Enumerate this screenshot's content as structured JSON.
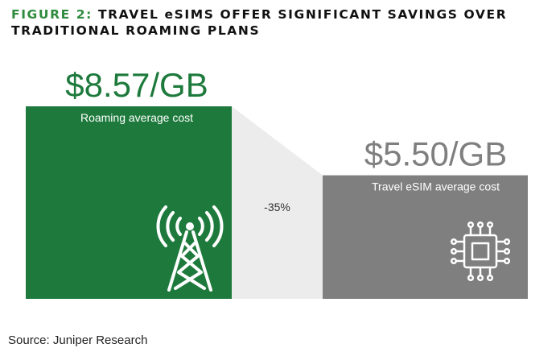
{
  "title": {
    "prefix": "FIGURE 2:",
    "text": "TRAVEL eSIMS OFFER SIGNIFICANT SAVINGS OVER TRADITIONAL ROAMING PLANS"
  },
  "chart_data": {
    "type": "bar",
    "categories": [
      "Roaming average cost",
      "Travel eSIM average cost"
    ],
    "values": [
      8.57,
      5.5
    ],
    "value_labels": [
      "$8.57/GB",
      "$5.50/GB"
    ],
    "unit": "$/GB",
    "ylim": [
      0,
      8.57
    ],
    "difference_label": "-35%",
    "colors": [
      "#1e7a3c",
      "#7f7f7f"
    ],
    "connector_color": "#ececec",
    "value_label_colors": [
      "#1e7a3c",
      "#7f7f7f"
    ],
    "grid": false,
    "legend": "none"
  },
  "icons": {
    "roaming": "radio-tower-icon",
    "esim": "chip-icon"
  },
  "source": "Source: Juniper Research"
}
